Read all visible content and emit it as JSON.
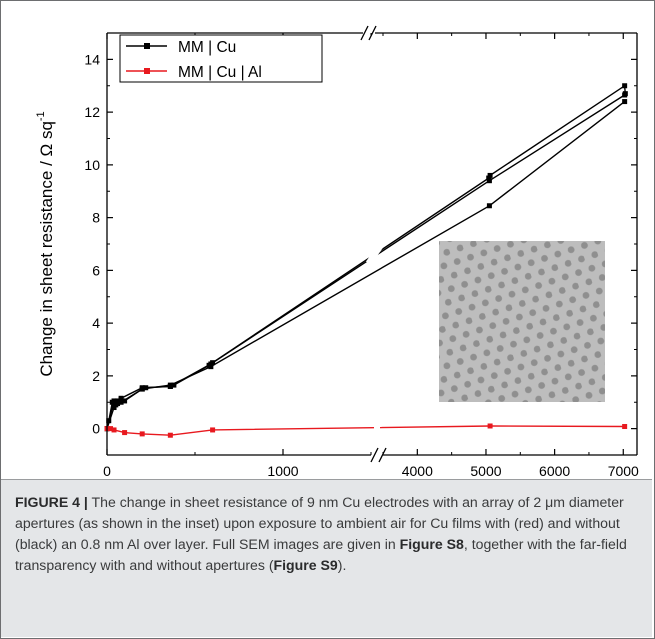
{
  "chart_data": {
    "type": "line",
    "ylabel": "Change in sheet resistance / Ω sq",
    "ylabel_superscript": "-1",
    "ylim": [
      -1,
      15
    ],
    "yticks": [
      0,
      2,
      4,
      6,
      8,
      10,
      12,
      14
    ],
    "x_segments": [
      {
        "range": [
          0,
          1500
        ],
        "ticks": [
          0,
          1000
        ]
      },
      {
        "range": [
          3500,
          7200
        ],
        "ticks": [
          4000,
          5000,
          6000,
          7000
        ]
      }
    ],
    "axis_break": true,
    "legend_position": "top-left",
    "series": [
      {
        "name": "MM | Cu",
        "color": "#000000",
        "points": [
          [
            0,
            0
          ],
          [
            10,
            0.3
          ],
          [
            30,
            1.0
          ],
          [
            50,
            0.9
          ],
          [
            60,
            1.05
          ],
          [
            80,
            1.1
          ],
          [
            100,
            1.05
          ],
          [
            200,
            1.5
          ],
          [
            220,
            1.55
          ],
          [
            360,
            1.6
          ],
          [
            380,
            1.65
          ],
          [
            580,
            2.4
          ],
          [
            600,
            2.5
          ],
          [
            5040,
            9.5
          ],
          [
            5060,
            9.6
          ],
          [
            7020,
            13.0
          ],
          [
            7030,
            12.7
          ]
        ]
      },
      {
        "name": "",
        "color": "#000000",
        "points": [
          [
            0,
            0
          ],
          [
            40,
            1.05
          ],
          [
            60,
            0.95
          ],
          [
            80,
            1.15
          ],
          [
            200,
            1.55
          ],
          [
            360,
            1.6
          ],
          [
            590,
            2.45
          ],
          [
            5050,
            9.4
          ],
          [
            7020,
            12.65
          ]
        ]
      },
      {
        "name": "",
        "color": "#000000",
        "points": [
          [
            0,
            0
          ],
          [
            40,
            0.8
          ],
          [
            80,
            1.0
          ],
          [
            200,
            1.5
          ],
          [
            360,
            1.65
          ],
          [
            590,
            2.35
          ],
          [
            5050,
            8.45
          ],
          [
            7020,
            12.4
          ]
        ]
      },
      {
        "name": "MM | Cu | Al",
        "color": "#e8191f",
        "points": [
          [
            0,
            0
          ],
          [
            20,
            0.0
          ],
          [
            40,
            -0.05
          ],
          [
            100,
            -0.15
          ],
          [
            200,
            -0.2
          ],
          [
            360,
            -0.25
          ],
          [
            600,
            -0.05
          ],
          [
            5060,
            0.1
          ],
          [
            7020,
            0.08
          ]
        ]
      }
    ]
  },
  "caption": {
    "label": "FIGURE 4 |",
    "text_1": " The change in sheet resistance of 9 nm Cu electrodes with an array of 2 μm diameter apertures (as shown in the inset) upon exposure to ambient air for Cu films with (red) and without (black) an 0.8 nm Al over layer. Full SEM images are given in ",
    "ref_1": "Figure S8",
    "text_2": ", together with the far-field transparency with and without apertures (",
    "ref_2": "Figure S9",
    "text_3": ")."
  }
}
